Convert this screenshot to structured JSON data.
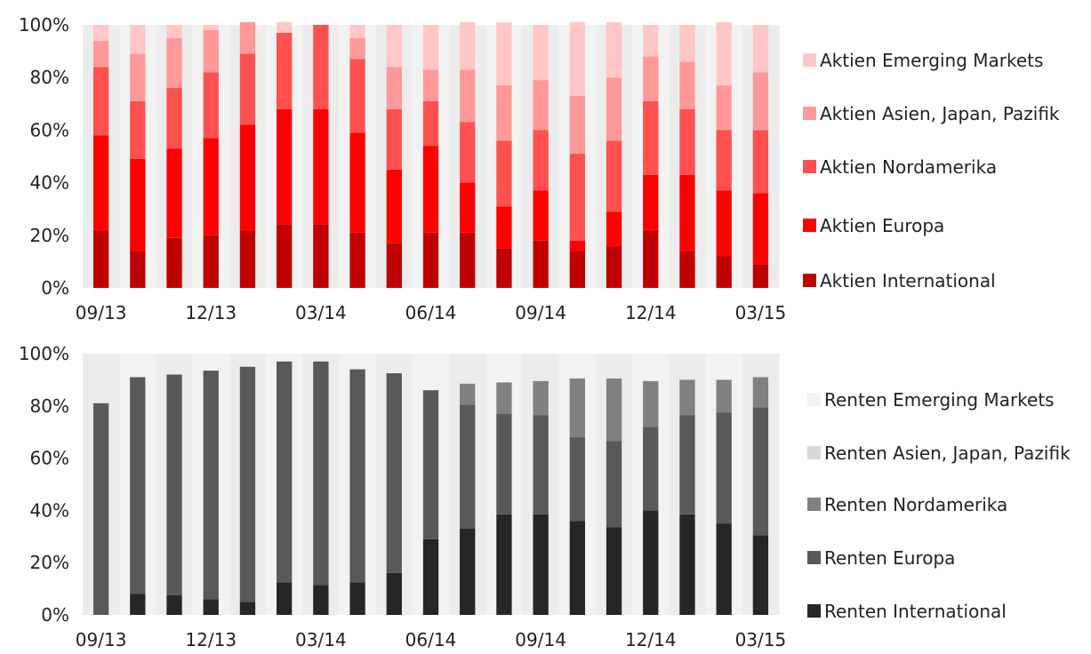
{
  "chart_data": [
    {
      "type": "bar",
      "stacked": true,
      "categories": [
        "09/13",
        "10/13",
        "11/13",
        "12/13",
        "01/14",
        "02/14",
        "03/14",
        "04/14",
        "05/14",
        "06/14",
        "07/14",
        "08/14",
        "09/14",
        "10/14",
        "11/14",
        "12/14",
        "01/15",
        "02/15",
        "03/15"
      ],
      "x_tick_labels": [
        "09/13",
        "12/13",
        "03/14",
        "06/14",
        "09/14",
        "12/14",
        "03/15"
      ],
      "x_tick_index": [
        0,
        3,
        6,
        9,
        12,
        15,
        18
      ],
      "y_tick_labels": [
        "0%",
        "20%",
        "40%",
        "60%",
        "80%",
        "100%"
      ],
      "ylim": [
        0,
        100
      ],
      "legend_position": "right",
      "series": [
        {
          "name": "Aktien International",
          "color": "#c00000",
          "values": [
            22,
            14,
            19,
            20,
            22,
            24,
            24,
            21,
            17,
            21,
            21,
            15,
            18,
            14,
            16,
            22,
            14,
            12,
            9
          ]
        },
        {
          "name": "Aktien Europa",
          "color": "#ff0000",
          "values": [
            36,
            35,
            34,
            37,
            40,
            44,
            44,
            38,
            28,
            33,
            19,
            16,
            19,
            4,
            13,
            21,
            29,
            25,
            27
          ]
        },
        {
          "name": "Aktien Nordamerika",
          "color": "#ff5050",
          "values": [
            26,
            22,
            23,
            25,
            27,
            29,
            32,
            28,
            23,
            17,
            23,
            25,
            23,
            33,
            27,
            28,
            25,
            23,
            24
          ]
        },
        {
          "name": "Aktien Asien, Japan, Pazifik",
          "color": "#ff9999",
          "values": [
            10,
            18,
            19,
            16,
            12,
            0,
            0,
            8,
            16,
            12,
            20,
            21,
            19,
            22,
            24,
            17,
            18,
            17,
            22
          ]
        },
        {
          "name": "Aktien Emerging Markets",
          "color": "#ffc7c7",
          "values": [
            6,
            11,
            5,
            2,
            0,
            4,
            0,
            5,
            16,
            17,
            18,
            24,
            21,
            28,
            21,
            12,
            14,
            24,
            18
          ]
        }
      ]
    },
    {
      "type": "bar",
      "stacked": true,
      "categories": [
        "09/13",
        "10/13",
        "11/13",
        "12/13",
        "01/14",
        "02/14",
        "03/14",
        "04/14",
        "05/14",
        "06/14",
        "07/14",
        "08/14",
        "09/14",
        "10/14",
        "11/14",
        "12/14",
        "01/15",
        "02/15",
        "03/15"
      ],
      "x_tick_labels": [
        "09/13",
        "12/13",
        "03/14",
        "06/14",
        "09/14",
        "12/14",
        "03/15"
      ],
      "x_tick_index": [
        0,
        3,
        6,
        9,
        12,
        15,
        18
      ],
      "y_tick_labels": [
        "0%",
        "20%",
        "40%",
        "60%",
        "80%",
        "100%"
      ],
      "ylim": [
        0,
        100
      ],
      "legend_position": "right",
      "series": [
        {
          "name": "Renten International",
          "color": "#262626",
          "values": [
            0,
            8,
            7.5,
            6,
            5,
            12.5,
            11.5,
            12.5,
            16,
            29,
            33,
            38.5,
            38.5,
            36,
            33.5,
            40,
            38.5,
            35,
            30.5
          ]
        },
        {
          "name": "Renten Europa",
          "color": "#595959",
          "values": [
            81,
            83,
            84.5,
            87.5,
            90,
            84.5,
            85.5,
            81.5,
            76.5,
            57,
            47.5,
            38.5,
            38,
            32,
            33,
            32,
            38,
            42.5,
            49
          ]
        },
        {
          "name": "Renten Nordamerika",
          "color": "#808080",
          "values": [
            0,
            0,
            0,
            0,
            0,
            0,
            0,
            0,
            0,
            0,
            8,
            12,
            13,
            22.5,
            24,
            17.5,
            13.5,
            12.5,
            11.5
          ]
        },
        {
          "name": "Renten Asien, Japan, Pazifik",
          "color": "#d9d9d9",
          "values": [
            0,
            0,
            0,
            0,
            0,
            0,
            0,
            0,
            0,
            0,
            0,
            0,
            0,
            0,
            0,
            0,
            0,
            0,
            0
          ]
        },
        {
          "name": "Renten Emerging Markets",
          "color": "#f2f2f2",
          "values": [
            0,
            0,
            0,
            0,
            0,
            0,
            0,
            0,
            0,
            0,
            0,
            0,
            0,
            0,
            0,
            0,
            0,
            0,
            0
          ]
        }
      ]
    }
  ]
}
